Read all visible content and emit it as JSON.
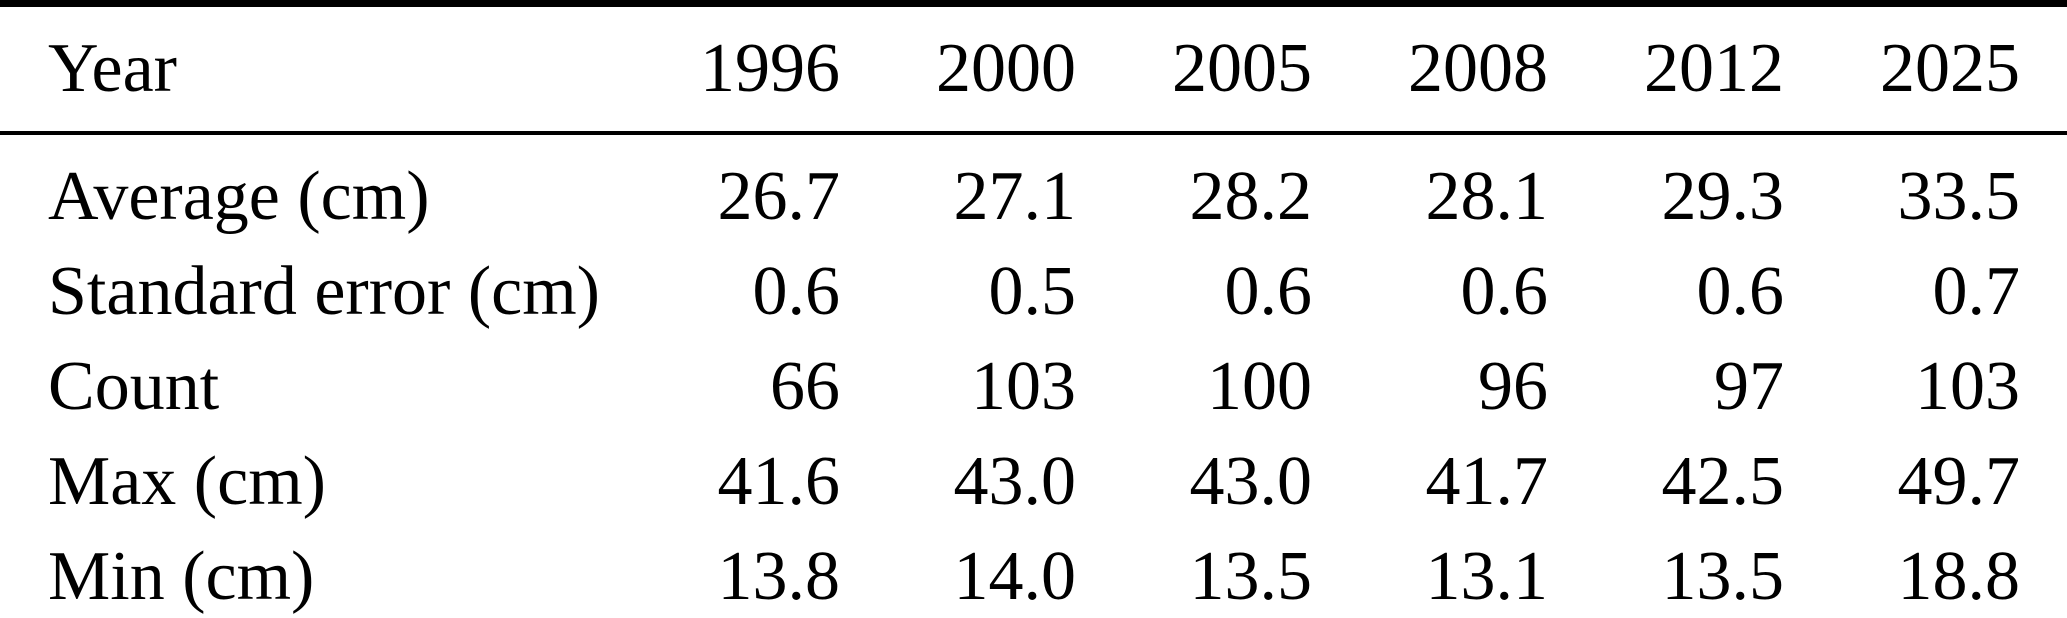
{
  "table": {
    "header": {
      "label": "Year",
      "columns": [
        "1996",
        "2000",
        "2005",
        "2008",
        "2012",
        "2025"
      ]
    },
    "rows": [
      {
        "label": "Average (cm)",
        "values": [
          "26.7",
          "27.1",
          "28.2",
          "28.1",
          "29.3",
          "33.5"
        ]
      },
      {
        "label": "Standard error (cm)",
        "values": [
          "0.6",
          "0.5",
          "0.6",
          "0.6",
          "0.6",
          "0.7"
        ]
      },
      {
        "label": "Count",
        "values": [
          "66",
          "103",
          "100",
          "96",
          "97",
          "103"
        ]
      },
      {
        "label": "Max (cm)",
        "values": [
          "41.6",
          "43.0",
          "43.0",
          "41.7",
          "42.5",
          "49.7"
        ]
      },
      {
        "label": "Min (cm)",
        "values": [
          "13.8",
          "14.0",
          "13.5",
          "13.1",
          "13.5",
          "18.8"
        ]
      }
    ]
  },
  "colors": {
    "text": "#000000",
    "background": "#ffffff",
    "rule": "#000000"
  }
}
